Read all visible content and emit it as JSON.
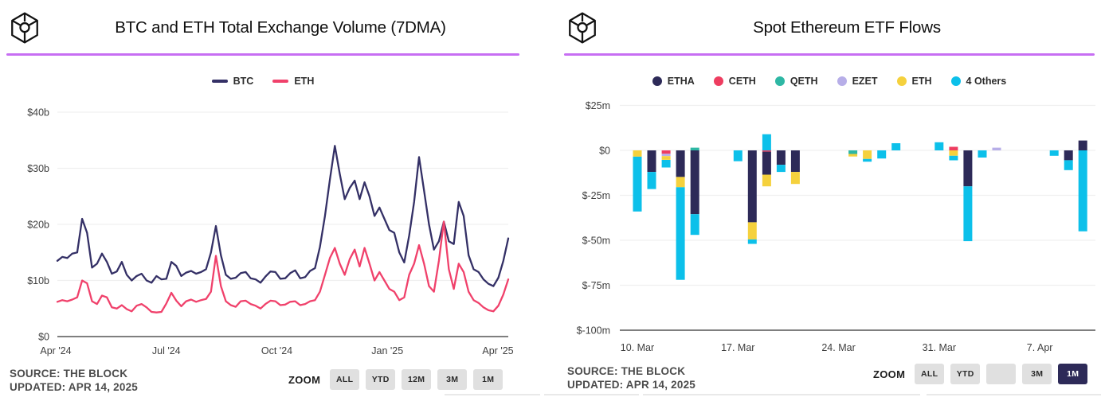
{
  "colors": {
    "accent_rule": "#c76ef3",
    "axis_line": "#7f7f7f",
    "grid_line": "#f0f0f0",
    "button_bg": "#e0e0e0",
    "button_selected_bg": "#2d2a58",
    "button_selected_text": "#ffffff",
    "tick_text": "#3f3f3f"
  },
  "panels": {
    "left": {
      "title": "BTC and ETH Total Exchange Volume (7DMA)",
      "source_line1": "SOURCE: THE BLOCK",
      "source_line2": "UPDATED: APR 14, 2025",
      "zoom_label": "ZOOM",
      "zoom_buttons": [
        "ALL",
        "YTD",
        "12M",
        "3M",
        "1M"
      ],
      "zoom_selected": ""
    },
    "right": {
      "title": "Spot Ethereum ETF Flows",
      "source_line1": "SOURCE: THE BLOCK",
      "source_line2": "UPDATED: APR 14, 2025",
      "zoom_label": "ZOOM",
      "zoom_buttons": [
        "ALL",
        "YTD",
        "",
        "3M",
        "1M"
      ],
      "zoom_selected": "1M"
    }
  },
  "chart_data": [
    {
      "type": "line",
      "title": "BTC and ETH Total Exchange Volume (7DMA)",
      "unit": "$b",
      "ylim": [
        0,
        40
      ],
      "grid": true,
      "legend_position": "top-center",
      "y_ticks": [
        {
          "label": "$40b",
          "value": 40
        },
        {
          "label": "$30b",
          "value": 30
        },
        {
          "label": "$20b",
          "value": 20
        },
        {
          "label": "$10b",
          "value": 10
        },
        {
          "label": "$0",
          "value": 0
        }
      ],
      "x_ticks": [
        "Apr '24",
        "Jul '24",
        "Oct '24",
        "Jan '25",
        "Apr '25"
      ],
      "series": [
        {
          "name": "BTC",
          "color": "#343066",
          "values": [
            13.5,
            14.2,
            14.0,
            14.8,
            15.0,
            21.0,
            18.5,
            12.3,
            13.0,
            14.8,
            13.3,
            11.2,
            11.6,
            13.3,
            11.0,
            10.0,
            10.8,
            11.2,
            10.0,
            9.6,
            10.8,
            10.2,
            10.3,
            13.3,
            12.6,
            10.8,
            11.4,
            11.7,
            11.2,
            11.5,
            12.0,
            15.0,
            19.7,
            14.5,
            11.0,
            10.3,
            10.5,
            11.3,
            11.5,
            10.4,
            10.2,
            9.6,
            10.7,
            11.6,
            11.5,
            10.3,
            10.4,
            11.3,
            11.8,
            10.4,
            10.6,
            11.7,
            12.2,
            16.0,
            21.5,
            28.0,
            34.0,
            29.0,
            24.5,
            26.5,
            27.8,
            24.5,
            27.5,
            25.0,
            21.5,
            23.0,
            21.0,
            19.0,
            18.5,
            15.0,
            13.2,
            18.0,
            24.0,
            32.0,
            26.0,
            20.0,
            15.5,
            17.0,
            20.5,
            17.0,
            16.5,
            24.0,
            21.5,
            14.5,
            12.0,
            11.5,
            10.2,
            9.4,
            9.0,
            10.5,
            13.5,
            17.5
          ]
        },
        {
          "name": "ETH",
          "color": "#f0416b",
          "values": [
            6.2,
            6.5,
            6.3,
            6.6,
            7.0,
            10.0,
            9.5,
            6.3,
            5.8,
            7.3,
            7.0,
            5.2,
            5.0,
            5.6,
            4.9,
            4.5,
            5.5,
            5.8,
            5.2,
            4.4,
            4.3,
            4.4,
            5.9,
            7.8,
            6.4,
            5.4,
            6.3,
            6.6,
            6.2,
            6.5,
            6.7,
            8.0,
            14.4,
            9.0,
            6.3,
            5.6,
            5.3,
            6.3,
            6.4,
            5.8,
            5.5,
            5.0,
            5.8,
            6.4,
            6.3,
            5.6,
            5.7,
            6.2,
            6.3,
            5.6,
            5.8,
            6.3,
            6.5,
            8.0,
            11.0,
            14.0,
            15.8,
            13.0,
            11.0,
            13.8,
            15.5,
            12.5,
            15.8,
            13.0,
            10.0,
            11.5,
            10.0,
            8.5,
            8.0,
            6.5,
            7.0,
            11.0,
            13.0,
            16.3,
            13.0,
            9.0,
            8.0,
            13.5,
            20.5,
            12.0,
            8.5,
            13.0,
            11.5,
            8.0,
            6.5,
            6.0,
            5.2,
            4.7,
            4.5,
            5.5,
            7.5,
            10.2
          ]
        }
      ]
    },
    {
      "type": "bar",
      "stacked": true,
      "title": "Spot Ethereum ETF Flows",
      "unit": "$m",
      "ylim": [
        -100,
        25
      ],
      "grid": true,
      "legend_position": "top-center",
      "y_ticks": [
        {
          "label": "$25m",
          "value": 25
        },
        {
          "label": "$0",
          "value": 0
        },
        {
          "label": "$-25m",
          "value": -25
        },
        {
          "label": "$-50m",
          "value": -50
        },
        {
          "label": "$-75m",
          "value": -75
        },
        {
          "label": "$-100m",
          "value": -100
        }
      ],
      "x_ticks": [
        {
          "label": "10. Mar",
          "day": 0
        },
        {
          "label": "17. Mar",
          "day": 7
        },
        {
          "label": "24. Mar",
          "day": 14
        },
        {
          "label": "31. Mar",
          "day": 21
        },
        {
          "label": "7. Apr",
          "day": 28
        }
      ],
      "legend": [
        {
          "label": "ETHA",
          "color": "#2d2a58"
        },
        {
          "label": "CETH",
          "color": "#ee3d60"
        },
        {
          "label": "QETH",
          "color": "#2eb7a4"
        },
        {
          "label": "EZET",
          "color": "#b7aee8"
        },
        {
          "label": "ETH",
          "color": "#f5d13d"
        },
        {
          "label": "4 Others",
          "color": "#0cc0ea"
        }
      ],
      "bars": [
        {
          "date": "10. Mar",
          "day": 0,
          "segments": [
            [
              "ETH",
              -3.5
            ],
            [
              "4 Others",
              -30.5
            ]
          ]
        },
        {
          "date": "11. Mar",
          "day": 1,
          "segments": [
            [
              "ETHA",
              -12
            ],
            [
              "4 Others",
              -9.5
            ]
          ]
        },
        {
          "date": "12. Mar",
          "day": 2,
          "segments": [
            [
              "CETH",
              -1.9
            ],
            [
              "EZET",
              -1.3
            ],
            [
              "ETH",
              -2.1
            ],
            [
              "4 Others",
              -4.2
            ]
          ]
        },
        {
          "date": "13. Mar",
          "day": 3,
          "segments": [
            [
              "ETHA",
              -14.8
            ],
            [
              "ETH",
              -5.7
            ],
            [
              "4 Others",
              -51.5
            ]
          ]
        },
        {
          "date": "14. Mar",
          "day": 4,
          "segments": [
            [
              "QETH",
              1.5
            ],
            [
              "ETHA",
              -35.5
            ],
            [
              "4 Others",
              -11.5
            ]
          ]
        },
        {
          "date": "17. Mar",
          "day": 7,
          "segments": [
            [
              "4 Others",
              -6
            ]
          ]
        },
        {
          "date": "18. Mar",
          "day": 8,
          "segments": [
            [
              "ETHA",
              -40
            ],
            [
              "ETH",
              -9.5
            ],
            [
              "4 Others",
              -2.5
            ]
          ]
        },
        {
          "date": "19. Mar",
          "day": 9,
          "segments": [
            [
              "4 Others",
              9
            ],
            [
              "CETH",
              -0.7
            ],
            [
              "ETHA",
              -12.8
            ],
            [
              "ETH",
              -6.5
            ]
          ]
        },
        {
          "date": "20. Mar",
          "day": 10,
          "segments": [
            [
              "ETHA",
              -8
            ],
            [
              "4 Others",
              -4
            ]
          ]
        },
        {
          "date": "21. Mar",
          "day": 11,
          "segments": [
            [
              "ETHA",
              -12
            ],
            [
              "ETH",
              -6.7
            ]
          ]
        },
        {
          "date": "25. Mar",
          "day": 15,
          "segments": [
            [
              "QETH",
              -2
            ],
            [
              "ETH",
              -1.4
            ]
          ]
        },
        {
          "date": "26. Mar",
          "day": 16,
          "segments": [
            [
              "ETH",
              -4.8
            ],
            [
              "4 Others",
              -1.5
            ]
          ]
        },
        {
          "date": "27. Mar",
          "day": 17,
          "segments": [
            [
              "4 Others",
              -4.5
            ]
          ]
        },
        {
          "date": "28. Mar",
          "day": 18,
          "segments": [
            [
              "4 Others",
              4
            ]
          ]
        },
        {
          "date": "31. Mar",
          "day": 21,
          "segments": [
            [
              "4 Others",
              4.5
            ]
          ]
        },
        {
          "date": "1. Apr",
          "day": 22,
          "segments": [
            [
              "CETH",
              2
            ],
            [
              "ETH",
              -3
            ],
            [
              "4 Others",
              -2.5
            ]
          ]
        },
        {
          "date": "2. Apr",
          "day": 23,
          "segments": [
            [
              "ETHA",
              -20
            ],
            [
              "4 Others",
              -30.5
            ]
          ]
        },
        {
          "date": "3. Apr",
          "day": 24,
          "segments": [
            [
              "4 Others",
              -4
            ]
          ]
        },
        {
          "date": "4. Apr",
          "day": 25,
          "segments": [
            [
              "EZET",
              1.5
            ]
          ]
        },
        {
          "date": "8. Apr",
          "day": 29,
          "segments": [
            [
              "4 Others",
              -3
            ]
          ]
        },
        {
          "date": "9. Apr",
          "day": 30,
          "segments": [
            [
              "ETHA",
              -5.5
            ],
            [
              "4 Others",
              -5.5
            ]
          ]
        },
        {
          "date": "10. Apr",
          "day": 31,
          "segments": [
            [
              "ETHA",
              5.5
            ],
            [
              "4 Others",
              -45
            ]
          ]
        }
      ]
    }
  ]
}
